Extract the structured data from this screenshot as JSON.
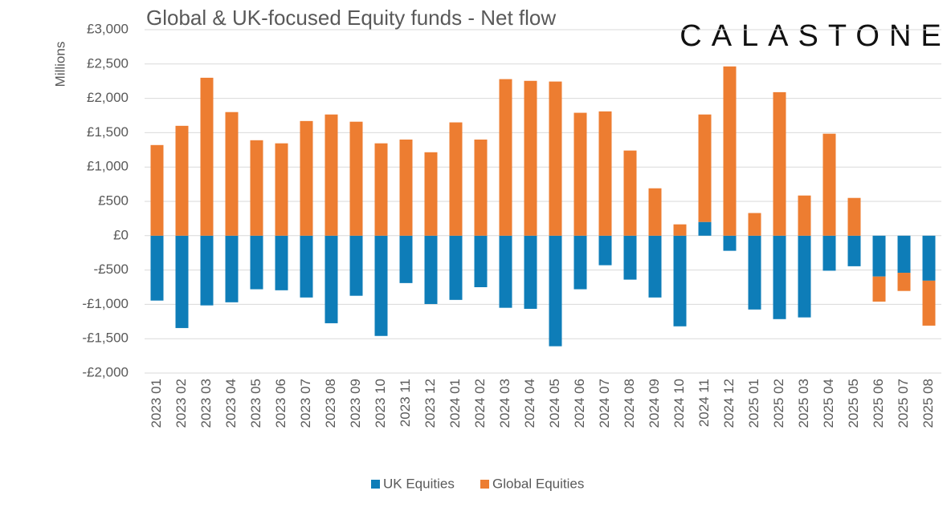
{
  "chart_data": {
    "type": "stacked-bar",
    "title": "Global & UK-focused Equity funds - Net flow",
    "logo": "CALASTONE",
    "y_label": "Millions",
    "categories": [
      "2023 01",
      "2023 02",
      "2023 03",
      "2023 04",
      "2023 05",
      "2023 06",
      "2023 07",
      "2023 08",
      "2023 09",
      "2023 10",
      "2023 11",
      "2023 12",
      "2024 01",
      "2024 02",
      "2024 03",
      "2024 04",
      "2024 05",
      "2024 06",
      "2024 07",
      "2024 08",
      "2024 09",
      "2024 10",
      "2024 11",
      "2024 12",
      "2025 01",
      "2025 02",
      "2025 03",
      "2025 04",
      "2025 05",
      "2025 06",
      "2025 07",
      "2025 08"
    ],
    "series": [
      {
        "name": "UK Equities",
        "color": "#0e7db8",
        "values": [
          -945,
          -1345,
          -1015,
          -970,
          -780,
          -795,
          -900,
          -1275,
          -875,
          -1460,
          -690,
          -995,
          -935,
          -750,
          -1050,
          -1065,
          -1610,
          -780,
          -430,
          -640,
          -900,
          -1320,
          200,
          -220,
          -1075,
          -1215,
          -1190,
          -510,
          -445,
          -595,
          -540,
          -655
        ]
      },
      {
        "name": "Global Equities",
        "color": "#ed7d31",
        "values": [
          1320,
          1600,
          2300,
          1800,
          1390,
          1345,
          1670,
          1765,
          1660,
          1345,
          1400,
          1215,
          1650,
          1400,
          2280,
          2255,
          2245,
          1790,
          1810,
          1240,
          690,
          165,
          1565,
          2465,
          330,
          2090,
          585,
          1485,
          550,
          -365,
          -265,
          -655
        ]
      }
    ],
    "ylim": [
      -2000,
      3000
    ],
    "yticks": [
      {
        "value": -2000,
        "label": "-£2,000"
      },
      {
        "value": -1500,
        "label": "-£1,500"
      },
      {
        "value": -1000,
        "label": "-£1,000"
      },
      {
        "value": -500,
        "label": "-£500"
      },
      {
        "value": 0,
        "label": "£0"
      },
      {
        "value": 500,
        "label": "£500"
      },
      {
        "value": 1000,
        "label": "£1,000"
      },
      {
        "value": 1500,
        "label": "£1,500"
      },
      {
        "value": 2000,
        "label": "£2,000"
      },
      {
        "value": 2500,
        "label": "£2,500"
      },
      {
        "value": 3000,
        "label": "£3,000"
      }
    ],
    "grid": true,
    "legend": "bottom"
  }
}
